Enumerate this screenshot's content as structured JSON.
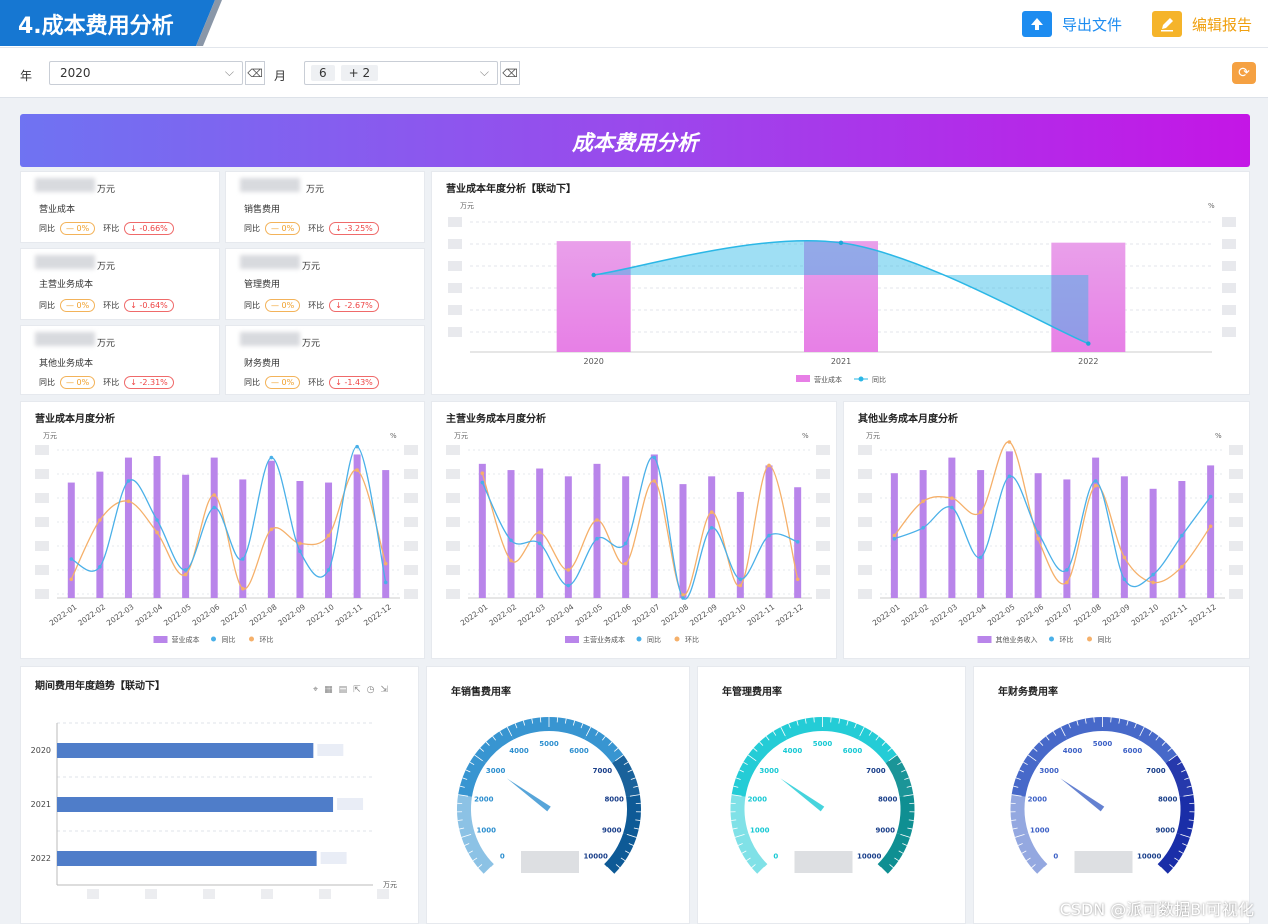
{
  "header": {
    "title": "4.成本费用分析",
    "export_label": "导出文件",
    "edit_label": "编辑报告"
  },
  "filters": {
    "year_label": "年",
    "year_value": "2020",
    "month_label": "月",
    "month_chips": [
      "6",
      "+ 2"
    ]
  },
  "banner": {
    "title": "成本费用分析"
  },
  "kpis": [
    {
      "unit": "万元",
      "name": "营业成本",
      "yoy_label": "同比",
      "yoy": "— 0%",
      "mom_label": "环比",
      "mom": "↓ -0.66%"
    },
    {
      "unit": "万元",
      "name": "销售费用",
      "yoy_label": "同比",
      "yoy": "— 0%",
      "mom_label": "环比",
      "mom": "↓ -3.25%"
    },
    {
      "unit": "万元",
      "name": "主营业务成本",
      "yoy_label": "同比",
      "yoy": "— 0%",
      "mom_label": "环比",
      "mom": "↓ -0.64%"
    },
    {
      "unit": "万元",
      "name": "管理费用",
      "yoy_label": "同比",
      "yoy": "— 0%",
      "mom_label": "环比",
      "mom": "↓ -2.67%"
    },
    {
      "unit": "万元",
      "name": "其他业务成本",
      "yoy_label": "同比",
      "yoy": "— 0%",
      "mom_label": "环比",
      "mom": "↓ -2.31%"
    },
    {
      "unit": "万元",
      "name": "财务费用",
      "yoy_label": "同比",
      "yoy": "— 0%",
      "mom_label": "环比",
      "mom": "↓ -1.43%"
    }
  ],
  "colors": {
    "header_blue": "#1677d2",
    "bar_pink": "#e77fe6",
    "line_cyan": "#2bb7e6",
    "bar_purple": "#b985ea",
    "line_blue": "#4ab0e8",
    "line_orange": "#f5b06a",
    "hbar_blue": "#4f7dc9",
    "gauge1": "#2d8fcf",
    "gauge2": "#18c9d4",
    "gauge3": "#3d61c6"
  },
  "chart_data": [
    {
      "type": "bar",
      "title": "营业成本年度分析【联动下】",
      "ylabel": "万元",
      "y2label": "%",
      "categories": [
        "2020",
        "2021",
        "2022"
      ],
      "series": [
        {
          "name": "营业成本",
          "kind": "bar",
          "values": [
            0.72,
            0.72,
            0.71
          ]
        },
        {
          "name": "同比",
          "kind": "line",
          "values": [
            0.55,
            0.78,
            0.06
          ]
        }
      ],
      "legend": "bottom"
    },
    {
      "type": "bar",
      "title": "营业成本月度分析",
      "ylabel": "万元",
      "y2label": "%",
      "categories": [
        "2022-01",
        "2022-02",
        "2022-03",
        "2022-04",
        "2022-05",
        "2022-06",
        "2022-07",
        "2022-08",
        "2022-09",
        "2022-10",
        "2022-11",
        "2022-12"
      ],
      "series": [
        {
          "name": "营业成本",
          "kind": "bar",
          "values": [
            0.74,
            0.81,
            0.9,
            0.91,
            0.79,
            0.9,
            0.76,
            0.88,
            0.75,
            0.74,
            0.92,
            0.82
          ]
        },
        {
          "name": "同比",
          "kind": "line",
          "values": [
            0.25,
            0.2,
            0.75,
            0.5,
            0.18,
            0.58,
            0.25,
            0.9,
            0.3,
            0.18,
            0.97,
            0.1
          ]
        },
        {
          "name": "环比",
          "kind": "line",
          "values": [
            0.12,
            0.5,
            0.62,
            0.42,
            0.15,
            0.66,
            0.06,
            0.44,
            0.35,
            0.4,
            0.82,
            0.22
          ]
        }
      ],
      "legend": "bottom"
    },
    {
      "type": "bar",
      "title": "主营业务成本月度分析",
      "ylabel": "万元",
      "y2label": "%",
      "categories": [
        "2022-01",
        "2022-02",
        "2022-03",
        "2022-04",
        "2022-05",
        "2022-06",
        "2022-07",
        "2022-08",
        "2022-09",
        "2022-10",
        "2022-11",
        "2022-12"
      ],
      "series": [
        {
          "name": "主营业务成本",
          "kind": "bar",
          "values": [
            0.86,
            0.82,
            0.83,
            0.78,
            0.86,
            0.78,
            0.92,
            0.73,
            0.78,
            0.68,
            0.85,
            0.71
          ]
        },
        {
          "name": "同比",
          "kind": "line",
          "values": [
            0.74,
            0.37,
            0.35,
            0.08,
            0.38,
            0.35,
            0.9,
            0.0,
            0.45,
            0.12,
            0.4,
            0.36
          ]
        },
        {
          "name": "环比",
          "kind": "line",
          "values": [
            0.8,
            0.24,
            0.42,
            0.18,
            0.5,
            0.22,
            0.75,
            0.02,
            0.55,
            0.08,
            0.85,
            0.12
          ]
        }
      ],
      "legend": "bottom"
    },
    {
      "type": "bar",
      "title": "其他业务成本月度分析",
      "ylabel": "万元",
      "y2label": "%",
      "categories": [
        "2022-01",
        "2022-02",
        "2022-03",
        "2022-04",
        "2022-05",
        "2022-06",
        "2022-07",
        "2022-08",
        "2022-09",
        "2022-10",
        "2022-11",
        "2022-12"
      ],
      "series": [
        {
          "name": "其他业务收入",
          "kind": "bar",
          "values": [
            0.8,
            0.82,
            0.9,
            0.82,
            0.94,
            0.8,
            0.76,
            0.9,
            0.78,
            0.7,
            0.75,
            0.85
          ]
        },
        {
          "name": "环比",
          "kind": "line",
          "values": [
            0.38,
            0.45,
            0.58,
            0.26,
            0.78,
            0.42,
            0.18,
            0.75,
            0.12,
            0.15,
            0.4,
            0.65
          ]
        },
        {
          "name": "同比",
          "kind": "line",
          "values": [
            0.4,
            0.62,
            0.64,
            0.55,
            1.0,
            0.38,
            0.1,
            0.72,
            0.26,
            0.1,
            0.2,
            0.46
          ]
        }
      ],
      "legend": "bottom"
    },
    {
      "type": "bar",
      "title": "期间费用年度趋势【联动下】",
      "orientation": "horizontal",
      "categories": [
        "2020",
        "2021",
        "2022"
      ],
      "values": [
        0.78,
        0.84,
        0.79
      ],
      "unit_label": "万元"
    }
  ],
  "gauges": [
    {
      "title": "年销售费用率",
      "ticks": [
        "0",
        "1000",
        "2000",
        "3000",
        "4000",
        "5000",
        "6000",
        "7000",
        "8000",
        "9000",
        "10000"
      ],
      "value": 0.3
    },
    {
      "title": "年管理费用率",
      "ticks": [
        "0",
        "1000",
        "2000",
        "3000",
        "4000",
        "5000",
        "6000",
        "7000",
        "8000",
        "9000",
        "10000"
      ],
      "value": 0.3
    },
    {
      "title": "年财务费用率",
      "ticks": [
        "0",
        "1000",
        "2000",
        "3000",
        "4000",
        "5000",
        "6000",
        "7000",
        "8000",
        "9000",
        "10000"
      ],
      "value": 0.3
    }
  ],
  "watermark": "CSDN @派可数据BI可视化"
}
